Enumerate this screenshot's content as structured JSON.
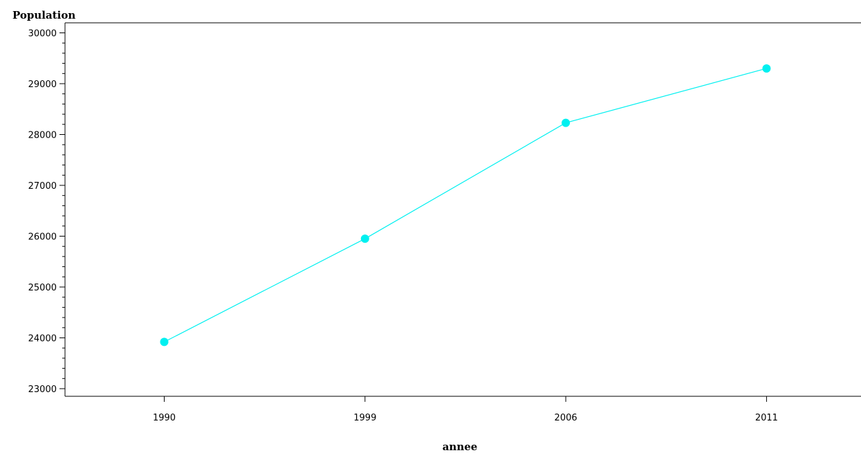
{
  "chart_data": {
    "type": "line",
    "title": "",
    "xlabel": "annee",
    "ylabel": "Population",
    "categories": [
      "1990",
      "1999",
      "2006",
      "2011"
    ],
    "series": [
      {
        "values": [
          23920,
          25950,
          28230,
          29300
        ],
        "color": "#00f0f0"
      }
    ],
    "ylim": [
      23000,
      30000
    ],
    "yticks": [
      23000,
      24000,
      25000,
      26000,
      27000,
      28000,
      29000,
      30000
    ],
    "grid": false,
    "marker": "circle",
    "colors": {
      "axis": "#000000",
      "background": "#ffffff"
    }
  }
}
